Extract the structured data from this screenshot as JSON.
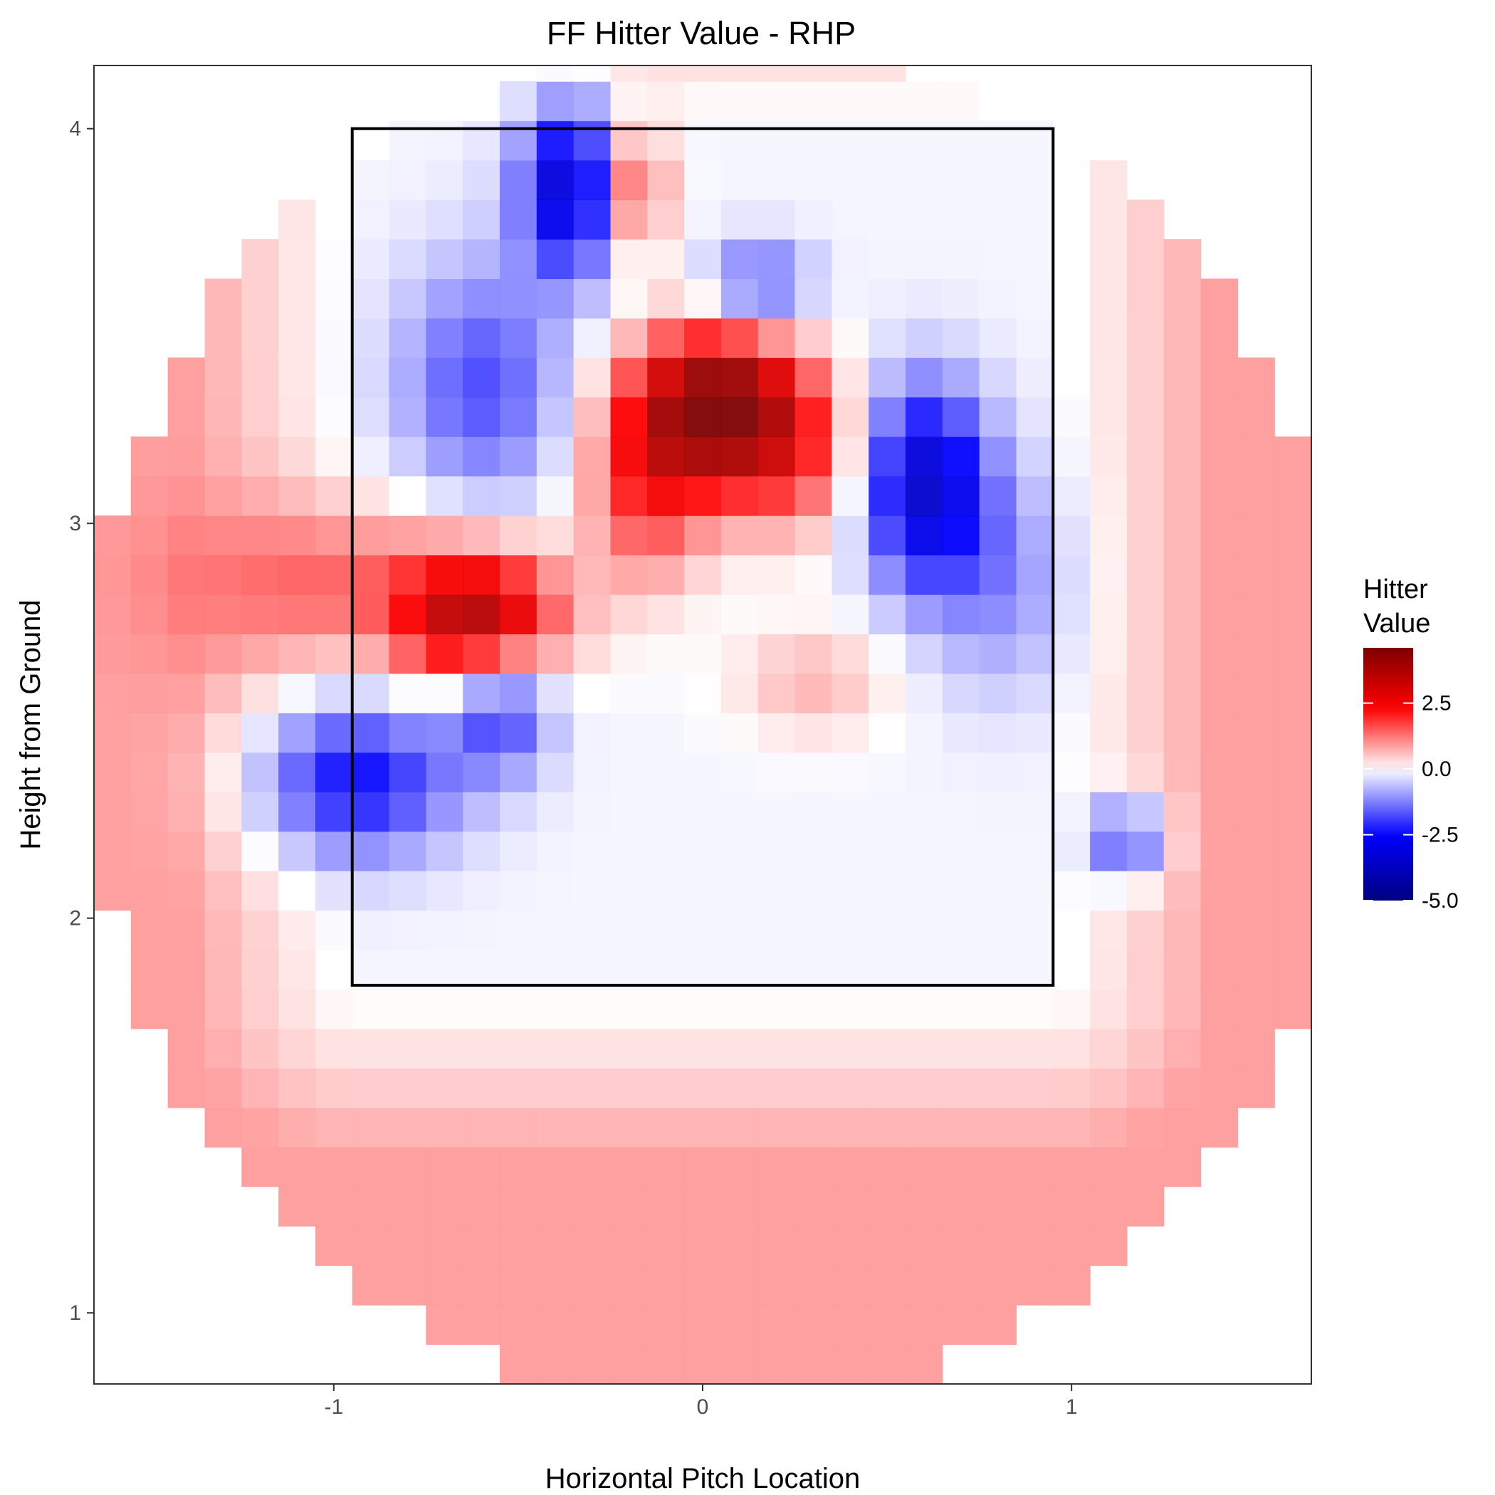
{
  "chart_data": {
    "type": "heatmap",
    "title": "FF Hitter Value - RHP",
    "xlabel": "Horizontal Pitch Location",
    "ylabel": "Height from Ground",
    "xlim": [
      -1.65,
      1.65
    ],
    "ylim": [
      0.82,
      4.16
    ],
    "x_ticks": [
      -1,
      0,
      1
    ],
    "x_tick_labels": [
      "-1",
      "0",
      "1"
    ],
    "y_ticks": [
      1,
      2,
      3,
      4
    ],
    "y_tick_labels": [
      "1",
      "2",
      "3",
      "4"
    ],
    "strike_zone": {
      "x": [
        -0.95,
        0.95
      ],
      "y": [
        1.83,
        4.0
      ]
    },
    "grid": false,
    "legend": {
      "title": [
        "Hitter",
        "Value"
      ],
      "placement": "right",
      "breaks": [
        2.5,
        0.0,
        -2.5,
        -5.0
      ],
      "break_labels": [
        "2.5",
        "0.0",
        "-2.5",
        "-5.0"
      ],
      "range": [
        -5.0,
        4.6
      ],
      "colors": [
        "#00007f",
        "#0000ff",
        "#ffffff",
        "#ff0000",
        "#7f0000"
      ]
    },
    "cell_size": {
      "x": 0.1,
      "y": 0.1
    },
    "hotspots": [
      {
        "x": 0.05,
        "y": 3.3,
        "value": 4.6,
        "sx": 0.16,
        "sy": 0.14
      },
      {
        "x": -0.15,
        "y": 3.1,
        "value": 2.0,
        "sx": 0.12,
        "sy": 0.18
      },
      {
        "x": 0.25,
        "y": 3.15,
        "value": 1.5,
        "sx": 0.14,
        "sy": 0.14
      },
      {
        "x": -0.6,
        "y": 2.75,
        "value": 3.6,
        "sx": 0.15,
        "sy": 0.12
      },
      {
        "x": -0.95,
        "y": 2.85,
        "value": 1.4,
        "sx": 0.28,
        "sy": 0.15
      },
      {
        "x": -0.2,
        "y": 3.85,
        "value": 2.4,
        "sx": 0.07,
        "sy": 0.12
      },
      {
        "x": 0.3,
        "y": 2.6,
        "value": 0.8,
        "sx": 0.15,
        "sy": 0.1
      },
      {
        "x": -0.35,
        "y": 3.85,
        "value": -3.5,
        "sx": 0.1,
        "sy": 0.15
      },
      {
        "x": -0.6,
        "y": 3.35,
        "value": -1.7,
        "sx": 0.16,
        "sy": 0.22
      },
      {
        "x": 0.6,
        "y": 3.1,
        "value": -3.3,
        "sx": 0.12,
        "sy": 0.18
      },
      {
        "x": 0.8,
        "y": 2.85,
        "value": -1.0,
        "sx": 0.14,
        "sy": 0.2
      },
      {
        "x": -0.95,
        "y": 2.35,
        "value": -2.4,
        "sx": 0.2,
        "sy": 0.14
      },
      {
        "x": -0.55,
        "y": 2.55,
        "value": -2.2,
        "sx": 0.1,
        "sy": 0.12
      },
      {
        "x": 0.15,
        "y": 3.6,
        "value": -1.8,
        "sx": 0.1,
        "sy": 0.08
      },
      {
        "x": 1.15,
        "y": 2.2,
        "value": -2.2,
        "sx": 0.07,
        "sy": 0.07
      }
    ],
    "background_value": 0.9,
    "interior_value": -0.1
  }
}
